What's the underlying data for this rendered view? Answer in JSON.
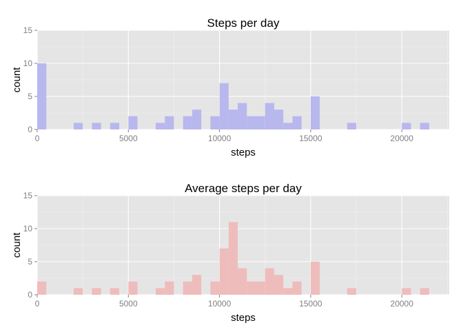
{
  "chart_data": [
    {
      "type": "bar",
      "title": "Steps per day",
      "xlabel": "steps",
      "ylabel": "count",
      "xlim": [
        0,
        22600
      ],
      "ylim": [
        0,
        15
      ],
      "xticks": [
        0,
        5000,
        10000,
        15000,
        20000
      ],
      "yticks": [
        0,
        5,
        10,
        15
      ],
      "bin_width": 500,
      "bins": [
        {
          "x": 0,
          "count": 10
        },
        {
          "x": 2000,
          "count": 1
        },
        {
          "x": 3000,
          "count": 1
        },
        {
          "x": 4000,
          "count": 1
        },
        {
          "x": 5000,
          "count": 2
        },
        {
          "x": 6500,
          "count": 1
        },
        {
          "x": 7000,
          "count": 2
        },
        {
          "x": 8000,
          "count": 2
        },
        {
          "x": 8500,
          "count": 3
        },
        {
          "x": 9500,
          "count": 2
        },
        {
          "x": 10000,
          "count": 7
        },
        {
          "x": 10500,
          "count": 3
        },
        {
          "x": 11000,
          "count": 4
        },
        {
          "x": 11500,
          "count": 2
        },
        {
          "x": 12000,
          "count": 2
        },
        {
          "x": 12500,
          "count": 4
        },
        {
          "x": 13000,
          "count": 3
        },
        {
          "x": 13500,
          "count": 1
        },
        {
          "x": 14000,
          "count": 2
        },
        {
          "x": 15000,
          "count": 5
        },
        {
          "x": 17000,
          "count": 1
        },
        {
          "x": 20000,
          "count": 1
        },
        {
          "x": 21000,
          "count": 1
        }
      ],
      "fill": "#b8b8ee",
      "panel_bg": "#e5e5e5",
      "grid": true
    },
    {
      "type": "bar",
      "title": "Average steps per day",
      "xlabel": "steps",
      "ylabel": "count",
      "xlim": [
        0,
        22600
      ],
      "ylim": [
        0,
        15
      ],
      "xticks": [
        0,
        5000,
        10000,
        15000,
        20000
      ],
      "yticks": [
        0,
        5,
        10,
        15
      ],
      "bin_width": 500,
      "bins": [
        {
          "x": 0,
          "count": 2
        },
        {
          "x": 2000,
          "count": 1
        },
        {
          "x": 3000,
          "count": 1
        },
        {
          "x": 4000,
          "count": 1
        },
        {
          "x": 5000,
          "count": 2
        },
        {
          "x": 6500,
          "count": 1
        },
        {
          "x": 7000,
          "count": 2
        },
        {
          "x": 8000,
          "count": 2
        },
        {
          "x": 8500,
          "count": 3
        },
        {
          "x": 9500,
          "count": 2
        },
        {
          "x": 10000,
          "count": 7
        },
        {
          "x": 10500,
          "count": 11
        },
        {
          "x": 11000,
          "count": 4
        },
        {
          "x": 11500,
          "count": 2
        },
        {
          "x": 12000,
          "count": 2
        },
        {
          "x": 12500,
          "count": 4
        },
        {
          "x": 13000,
          "count": 3
        },
        {
          "x": 13500,
          "count": 1
        },
        {
          "x": 14000,
          "count": 2
        },
        {
          "x": 15000,
          "count": 5
        },
        {
          "x": 17000,
          "count": 1
        },
        {
          "x": 20000,
          "count": 1
        },
        {
          "x": 21000,
          "count": 1
        }
      ],
      "fill": "#efbcbc",
      "panel_bg": "#e5e5e5",
      "grid": true
    }
  ]
}
